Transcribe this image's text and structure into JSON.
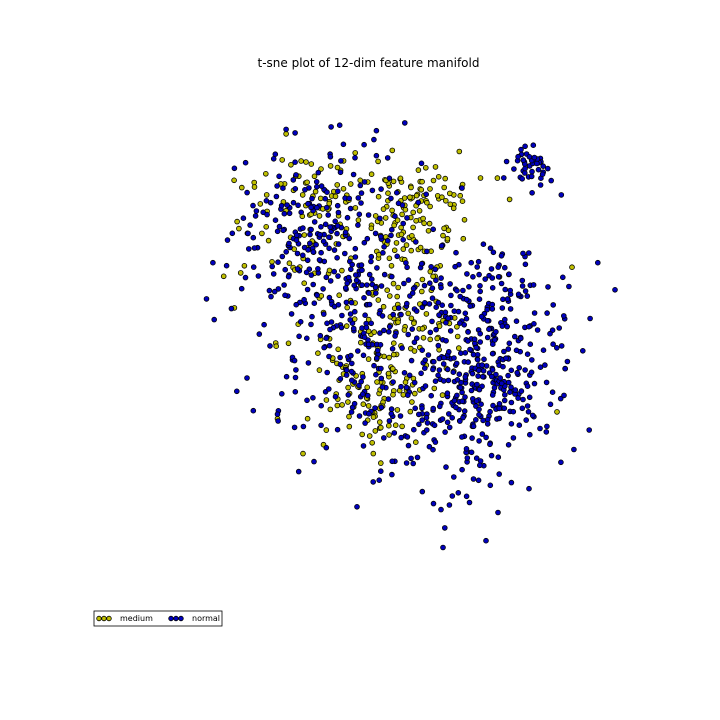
{
  "chart_data": {
    "type": "scatter",
    "title": "t-sne plot of  12-dim feature manifold",
    "xlabel": "",
    "ylabel": "",
    "axes_visible": false,
    "grid": false,
    "xlim": [
      -1,
      1
    ],
    "ylim": [
      -1,
      1
    ],
    "legend": {
      "position": "lower-left-outside",
      "columns": 2
    },
    "series": [
      {
        "name": "medium",
        "color": "#bfbf00",
        "point_count": 420,
        "clusters": [
          {
            "cx": -0.36,
            "cy": 0.48,
            "spread": 0.17,
            "weight": 0.25
          },
          {
            "cx": 0.1,
            "cy": 0.5,
            "spread": 0.12,
            "weight": 0.25
          },
          {
            "cx": 0.02,
            "cy": 0.02,
            "spread": 0.16,
            "weight": 0.25
          },
          {
            "cx": -0.15,
            "cy": -0.28,
            "spread": 0.15,
            "weight": 0.25
          }
        ],
        "points": [
          [
            -0.53,
            0.85
          ],
          [
            -0.46,
            0.73
          ],
          [
            -0.62,
            0.58
          ],
          [
            -0.71,
            0.41
          ],
          [
            -0.82,
            0.22
          ],
          [
            -0.77,
            0.08
          ],
          [
            -0.35,
            0.6
          ],
          [
            -0.25,
            0.55
          ],
          [
            -0.05,
            0.62
          ],
          [
            0.12,
            0.7
          ],
          [
            0.18,
            0.66
          ],
          [
            0.25,
            0.58
          ],
          [
            0.05,
            0.48
          ],
          [
            0.2,
            0.4
          ],
          [
            0.3,
            0.47
          ],
          [
            -0.1,
            0.3
          ],
          [
            0.0,
            0.05
          ],
          [
            0.05,
            -0.1
          ],
          [
            -0.08,
            -0.25
          ],
          [
            0.25,
            -0.2
          ],
          [
            -0.43,
            -0.41
          ],
          [
            -0.57,
            -0.41
          ],
          [
            0.51,
            0.56
          ],
          [
            0.8,
            0.26
          ],
          [
            0.73,
            -0.38
          ]
        ]
      },
      {
        "name": "normal",
        "color": "#0000bf",
        "point_count": 960,
        "clusters": [
          {
            "cx": -0.32,
            "cy": 0.4,
            "spread": 0.22,
            "weight": 0.25
          },
          {
            "cx": -0.2,
            "cy": -0.15,
            "spread": 0.22,
            "weight": 0.2
          },
          {
            "cx": 0.4,
            "cy": -0.05,
            "spread": 0.2,
            "weight": 0.3
          },
          {
            "cx": 0.3,
            "cy": -0.4,
            "spread": 0.18,
            "weight": 0.2
          },
          {
            "cx": 0.62,
            "cy": 0.72,
            "spread": 0.05,
            "weight": 0.05
          }
        ],
        "points": [
          [
            -0.53,
            0.87
          ],
          [
            -0.58,
            0.76
          ],
          [
            -0.78,
            0.41
          ],
          [
            -0.87,
            0.28
          ],
          [
            -0.9,
            0.12
          ],
          [
            -0.6,
            0.13
          ],
          [
            -0.5,
            -0.15
          ],
          [
            -0.55,
            -0.3
          ],
          [
            -0.4,
            -0.6
          ],
          [
            -0.2,
            -0.8
          ],
          [
            0.2,
            -0.98
          ],
          [
            0.4,
            -0.95
          ],
          [
            0.6,
            -0.72
          ],
          [
            0.88,
            -0.46
          ],
          [
            1.0,
            0.16
          ],
          [
            0.92,
            0.28
          ],
          [
            0.62,
            0.8
          ],
          [
            0.63,
            0.73
          ],
          [
            0.75,
            0.58
          ],
          [
            0.1,
            0.72
          ]
        ]
      }
    ]
  }
}
